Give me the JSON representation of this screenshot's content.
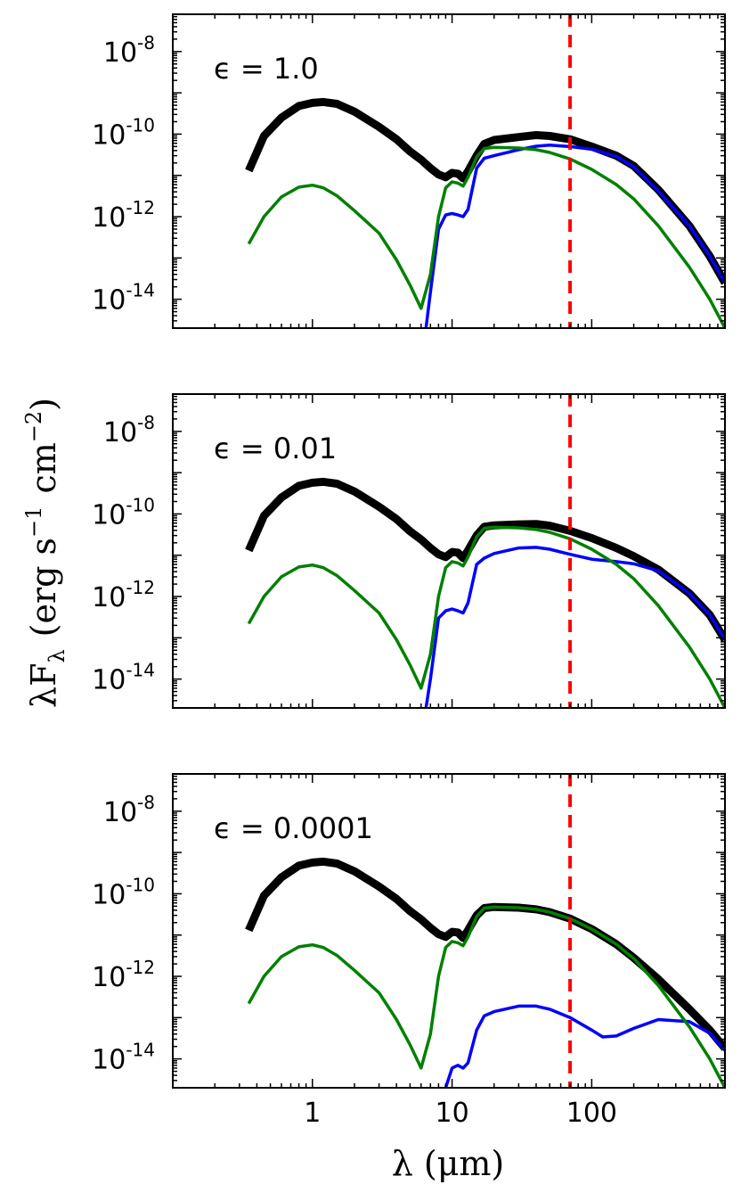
{
  "chart_data": [
    {
      "type": "line",
      "annotation": "ϵ = 1.0",
      "xscale": "log",
      "yscale": "log",
      "xlim": [
        0.1,
        900
      ],
      "ylim": [
        2e-15,
        8e-08
      ],
      "vline": {
        "x": 70,
        "color": "#ff0000",
        "style": "dashed"
      },
      "yticks": [
        "10",
        "10",
        "10",
        "10"
      ],
      "ytick_exponents": [
        "-8",
        "-10",
        "-12",
        "-14"
      ],
      "series": [
        {
          "name": "total",
          "color": "#000000",
          "x": [
            0.35,
            0.45,
            0.6,
            0.8,
            1.0,
            1.2,
            1.5,
            2,
            3,
            4,
            5,
            6,
            7,
            8,
            9,
            10,
            11,
            12,
            13,
            15,
            17,
            20,
            30,
            40,
            50,
            70,
            100,
            150,
            200,
            300,
            500,
            700,
            900
          ],
          "y": [
            1.3e-11,
            9e-11,
            2.5e-10,
            4.8e-10,
            5.7e-10,
            6e-10,
            5.4e-10,
            3.5e-10,
            1.5e-10,
            7.5e-11,
            3.8e-11,
            2.4e-11,
            1.5e-11,
            1.05e-11,
            9e-12,
            1.15e-11,
            1.1e-11,
            8.5e-12,
            1.25e-11,
            3e-11,
            5.8e-11,
            7.2e-11,
            8.5e-11,
            9.5e-11,
            9e-11,
            7.5e-11,
            5e-11,
            3e-11,
            1.7e-11,
            4.5e-12,
            6e-13,
            1.1e-13,
            2.5e-14
          ]
        },
        {
          "name": "green",
          "color": "#008000",
          "x": [
            0.35,
            0.45,
            0.6,
            0.8,
            1.0,
            1.2,
            1.5,
            2,
            3,
            4,
            5,
            6,
            7,
            8,
            9,
            10,
            11,
            12,
            13,
            15,
            17,
            20,
            30,
            40,
            50,
            70,
            100,
            150,
            200,
            300,
            500,
            700,
            900
          ],
          "y": [
            2.2e-13,
            1e-12,
            3e-12,
            5.2e-12,
            5.8e-12,
            5e-12,
            3.2e-12,
            1.4e-12,
            4e-13,
            9e-14,
            2.2e-14,
            6e-15,
            4e-14,
            1e-12,
            5e-12,
            7e-12,
            6.5e-12,
            5.5e-12,
            9e-12,
            2.8e-11,
            4.5e-11,
            4.8e-11,
            4.6e-11,
            4.2e-11,
            3.6e-11,
            2.5e-11,
            1.4e-11,
            6e-12,
            2.7e-12,
            6e-13,
            6e-14,
            1e-14,
            2e-15
          ]
        },
        {
          "name": "blue",
          "color": "#0000ff",
          "x": [
            6.5,
            7,
            8,
            9,
            10,
            11,
            12,
            13,
            15,
            17,
            20,
            30,
            40,
            50,
            70,
            100,
            150,
            200,
            300,
            500,
            700,
            900
          ],
          "y": [
            2e-15,
            1.5e-14,
            5e-13,
            1.1e-12,
            1.2e-12,
            1.1e-12,
            1e-12,
            1.5e-12,
            1.5e-11,
            2.6e-11,
            3e-11,
            4.2e-11,
            5.1e-11,
            5.4e-11,
            5e-11,
            4.3e-11,
            2.9e-11,
            1.6e-11,
            4.2e-12,
            6e-13,
            1.1e-13,
            2.5e-14
          ]
        }
      ]
    },
    {
      "type": "line",
      "annotation": "ϵ = 0.01",
      "xscale": "log",
      "yscale": "log",
      "xlim": [
        0.1,
        900
      ],
      "ylim": [
        2e-15,
        8e-08
      ],
      "vline": {
        "x": 70,
        "color": "#ff0000",
        "style": "dashed"
      },
      "yticks": [
        "10",
        "10",
        "10",
        "10"
      ],
      "ytick_exponents": [
        "-8",
        "-10",
        "-12",
        "-14"
      ],
      "series": [
        {
          "name": "total",
          "color": "#000000",
          "x": [
            0.35,
            0.45,
            0.6,
            0.8,
            1.0,
            1.2,
            1.5,
            2,
            3,
            4,
            5,
            6,
            7,
            8,
            9,
            10,
            11,
            12,
            13,
            15,
            17,
            20,
            30,
            40,
            50,
            70,
            100,
            150,
            200,
            300,
            500,
            700,
            900
          ],
          "y": [
            1.3e-11,
            9e-11,
            2.5e-10,
            4.8e-10,
            5.7e-10,
            6e-10,
            5.4e-10,
            3.5e-10,
            1.5e-10,
            7.5e-11,
            3.8e-11,
            2.4e-11,
            1.5e-11,
            1.05e-11,
            9e-12,
            1.2e-11,
            1.15e-11,
            8.5e-12,
            1.3e-11,
            3e-11,
            4.9e-11,
            5.3e-11,
            5.6e-11,
            5.7e-11,
            5.2e-11,
            3.9e-11,
            2.6e-11,
            1.5e-11,
            9.5e-12,
            4.5e-12,
            1.2e-12,
            3.6e-13,
            9e-14
          ]
        },
        {
          "name": "green",
          "color": "#008000",
          "x": [
            0.35,
            0.45,
            0.6,
            0.8,
            1.0,
            1.2,
            1.5,
            2,
            3,
            4,
            5,
            6,
            7,
            8,
            9,
            10,
            11,
            12,
            13,
            15,
            17,
            20,
            30,
            40,
            50,
            70,
            100,
            150,
            200,
            300,
            500,
            700,
            900
          ],
          "y": [
            2.2e-13,
            1e-12,
            3e-12,
            5.2e-12,
            5.8e-12,
            5e-12,
            3.2e-12,
            1.4e-12,
            4e-13,
            9e-14,
            2.2e-14,
            6e-15,
            4e-14,
            1e-12,
            5e-12,
            7e-12,
            6.5e-12,
            5.5e-12,
            9e-12,
            2.8e-11,
            4.5e-11,
            4.8e-11,
            4.6e-11,
            4.2e-11,
            3.6e-11,
            2.5e-11,
            1.4e-11,
            6e-12,
            2.7e-12,
            6e-13,
            6e-14,
            1e-14,
            2e-15
          ]
        },
        {
          "name": "blue",
          "color": "#0000ff",
          "x": [
            6.5,
            7,
            8,
            9,
            10,
            11,
            12,
            13,
            15,
            17,
            20,
            30,
            40,
            50,
            70,
            100,
            150,
            200,
            300,
            500,
            700,
            900
          ],
          "y": [
            2e-15,
            1e-14,
            3e-13,
            4.5e-13,
            5e-13,
            4.5e-13,
            4e-13,
            7e-13,
            6e-12,
            8.5e-12,
            1.1e-11,
            1.5e-11,
            1.55e-11,
            1.4e-11,
            1.05e-11,
            8e-12,
            7e-12,
            6.2e-12,
            4.2e-12,
            1.2e-12,
            3.6e-13,
            9e-14
          ]
        }
      ]
    },
    {
      "type": "line",
      "annotation": "ϵ = 0.0001",
      "xscale": "log",
      "yscale": "log",
      "xlim": [
        0.1,
        900
      ],
      "ylim": [
        2e-15,
        8e-08
      ],
      "vline": {
        "x": 70,
        "color": "#ff0000",
        "style": "dashed"
      },
      "yticks": [
        "10",
        "10",
        "10",
        "10"
      ],
      "ytick_exponents": [
        "-8",
        "-10",
        "-12",
        "-14"
      ],
      "xticks": [
        1,
        10,
        100
      ],
      "xtick_labels": [
        "1",
        "10",
        "100"
      ],
      "series": [
        {
          "name": "total",
          "color": "#000000",
          "x": [
            0.35,
            0.45,
            0.6,
            0.8,
            1.0,
            1.2,
            1.5,
            2,
            3,
            4,
            5,
            6,
            7,
            8,
            9,
            10,
            11,
            12,
            13,
            15,
            17,
            20,
            30,
            40,
            50,
            70,
            100,
            150,
            200,
            300,
            500,
            700,
            900
          ],
          "y": [
            1.3e-11,
            9e-11,
            2.5e-10,
            4.8e-10,
            5.7e-10,
            6e-10,
            5.4e-10,
            3.5e-10,
            1.5e-10,
            7.5e-11,
            3.8e-11,
            2.4e-11,
            1.5e-11,
            1.05e-11,
            9e-12,
            1.2e-11,
            1.15e-11,
            8.5e-12,
            1.3e-11,
            3e-11,
            4.5e-11,
            4.8e-11,
            4.6e-11,
            4.2e-11,
            3.6e-11,
            2.5e-11,
            1.4e-11,
            6e-12,
            2.8e-12,
            8.5e-13,
            1.6e-13,
            5e-14,
            1.8e-14
          ]
        },
        {
          "name": "green",
          "color": "#008000",
          "x": [
            0.35,
            0.45,
            0.6,
            0.8,
            1.0,
            1.2,
            1.5,
            2,
            3,
            4,
            5,
            6,
            7,
            8,
            9,
            10,
            11,
            12,
            13,
            15,
            17,
            20,
            30,
            40,
            50,
            70,
            100,
            150,
            200,
            300,
            500,
            700,
            900
          ],
          "y": [
            2.2e-13,
            1e-12,
            3e-12,
            5.2e-12,
            5.8e-12,
            5e-12,
            3.2e-12,
            1.4e-12,
            4e-13,
            9e-14,
            2.2e-14,
            6e-15,
            4e-14,
            1e-12,
            5e-12,
            7e-12,
            6.5e-12,
            5.5e-12,
            9e-12,
            2.8e-11,
            4.5e-11,
            4.8e-11,
            4.6e-11,
            4.2e-11,
            3.6e-11,
            2.5e-11,
            1.4e-11,
            6e-12,
            2.7e-12,
            6e-13,
            6e-14,
            1e-14,
            2e-15
          ]
        },
        {
          "name": "blue",
          "color": "#0000ff",
          "x": [
            9,
            10,
            11,
            12,
            13,
            15,
            17,
            20,
            30,
            40,
            50,
            70,
            100,
            120,
            150,
            200,
            300,
            500,
            700,
            900
          ],
          "y": [
            2e-15,
            6e-15,
            7e-15,
            6e-15,
            8e-15,
            5e-14,
            1.1e-13,
            1.4e-13,
            1.9e-13,
            1.9e-13,
            1.6e-13,
            1e-13,
            5e-14,
            3.4e-14,
            3.6e-14,
            5.5e-14,
            9e-14,
            8e-14,
            4.2e-14,
            1.6e-14
          ]
        }
      ]
    }
  ],
  "xlabel": "λ  (μm)",
  "ylabel": "λF",
  "ylabel_sub": "λ",
  "ylabel_units": "(erg  s",
  "ylabel_units_exp1": "−1",
  "ylabel_units_cm": "cm",
  "ylabel_units_exp2": "−2",
  "ylabel_close": ")"
}
